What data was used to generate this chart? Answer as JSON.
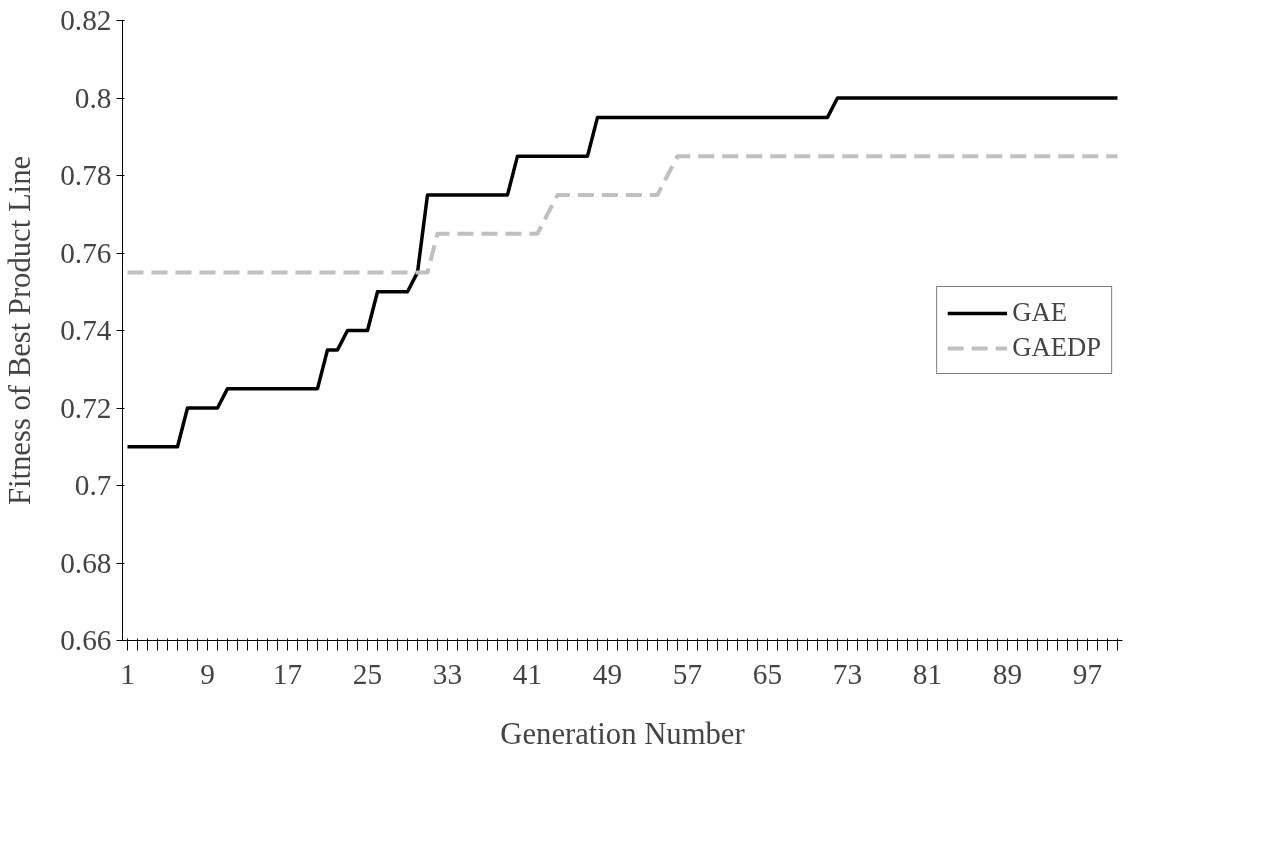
{
  "chart_data": {
    "type": "line",
    "xlabel": "Generation Number",
    "ylabel": "Fitness of Best Product Line",
    "categories": [
      "1",
      null,
      null,
      null,
      null,
      null,
      null,
      null,
      "9",
      null,
      null,
      null,
      null,
      null,
      null,
      null,
      "17",
      null,
      null,
      null,
      null,
      null,
      null,
      null,
      "25",
      null,
      null,
      null,
      null,
      null,
      null,
      null,
      "33",
      null,
      null,
      null,
      null,
      null,
      null,
      null,
      "41",
      null,
      null,
      null,
      null,
      null,
      null,
      null,
      "49",
      null,
      null,
      null,
      null,
      null,
      null,
      null,
      "57",
      null,
      null,
      null,
      null,
      null,
      null,
      null,
      "65",
      null,
      null,
      null,
      null,
      null,
      null,
      null,
      "73",
      null,
      null,
      null,
      null,
      null,
      null,
      null,
      "81",
      null,
      null,
      null,
      null,
      null,
      null,
      null,
      "89",
      null,
      null,
      null,
      null,
      null,
      null,
      null,
      "97",
      null,
      null,
      null
    ],
    "series": [
      {
        "name": "GAE",
        "color": "#000000",
        "line_style": "solid",
        "values": [
          0.71,
          0.71,
          0.71,
          0.71,
          0.71,
          0.71,
          0.72,
          0.72,
          0.72,
          0.72,
          0.725,
          0.725,
          0.725,
          0.725,
          0.725,
          0.725,
          0.725,
          0.725,
          0.725,
          0.725,
          0.735,
          0.735,
          0.74,
          0.74,
          0.74,
          0.75,
          0.75,
          0.75,
          0.75,
          0.755,
          0.775,
          0.775,
          0.775,
          0.775,
          0.775,
          0.775,
          0.775,
          0.775,
          0.775,
          0.785,
          0.785,
          0.785,
          0.785,
          0.785,
          0.785,
          0.785,
          0.785,
          0.795,
          0.795,
          0.795,
          0.795,
          0.795,
          0.795,
          0.795,
          0.795,
          0.795,
          0.795,
          0.795,
          0.795,
          0.795,
          0.795,
          0.795,
          0.795,
          0.795,
          0.795,
          0.795,
          0.795,
          0.795,
          0.795,
          0.795,
          0.795,
          0.8,
          0.8,
          0.8,
          0.8,
          0.8,
          0.8,
          0.8,
          0.8,
          0.8,
          0.8,
          0.8,
          0.8,
          0.8,
          0.8,
          0.8,
          0.8,
          0.8,
          0.8,
          0.8,
          0.8,
          0.8,
          0.8,
          0.8,
          0.8,
          0.8,
          0.8,
          0.8,
          0.8,
          0.8
        ]
      },
      {
        "name": "GAEDP",
        "color": "#c0c0c0",
        "line_style": "dashed",
        "values": [
          0.755,
          0.755,
          0.755,
          0.755,
          0.755,
          0.755,
          0.755,
          0.755,
          0.755,
          0.755,
          0.755,
          0.755,
          0.755,
          0.755,
          0.755,
          0.755,
          0.755,
          0.755,
          0.755,
          0.755,
          0.755,
          0.755,
          0.755,
          0.755,
          0.755,
          0.755,
          0.755,
          0.755,
          0.755,
          0.755,
          0.755,
          0.765,
          0.765,
          0.765,
          0.765,
          0.765,
          0.765,
          0.765,
          0.765,
          0.765,
          0.765,
          0.765,
          0.77,
          0.775,
          0.775,
          0.775,
          0.775,
          0.775,
          0.775,
          0.775,
          0.775,
          0.775,
          0.775,
          0.775,
          0.78,
          0.785,
          0.785,
          0.785,
          0.785,
          0.785,
          0.785,
          0.785,
          0.785,
          0.785,
          0.785,
          0.785,
          0.785,
          0.785,
          0.785,
          0.785,
          0.785,
          0.785,
          0.785,
          0.785,
          0.785,
          0.785,
          0.785,
          0.785,
          0.785,
          0.785,
          0.785,
          0.785,
          0.785,
          0.785,
          0.785,
          0.785,
          0.785,
          0.785,
          0.785,
          0.785,
          0.785,
          0.785,
          0.785,
          0.785,
          0.785,
          0.785,
          0.785,
          0.785,
          0.785,
          0.785
        ]
      }
    ],
    "ylim": [
      0.66,
      0.82
    ],
    "yticks": [
      0.66,
      0.68,
      0.7,
      0.72,
      0.74,
      0.76,
      0.78,
      0.8,
      0.82
    ],
    "grid": false,
    "legend": "right"
  }
}
